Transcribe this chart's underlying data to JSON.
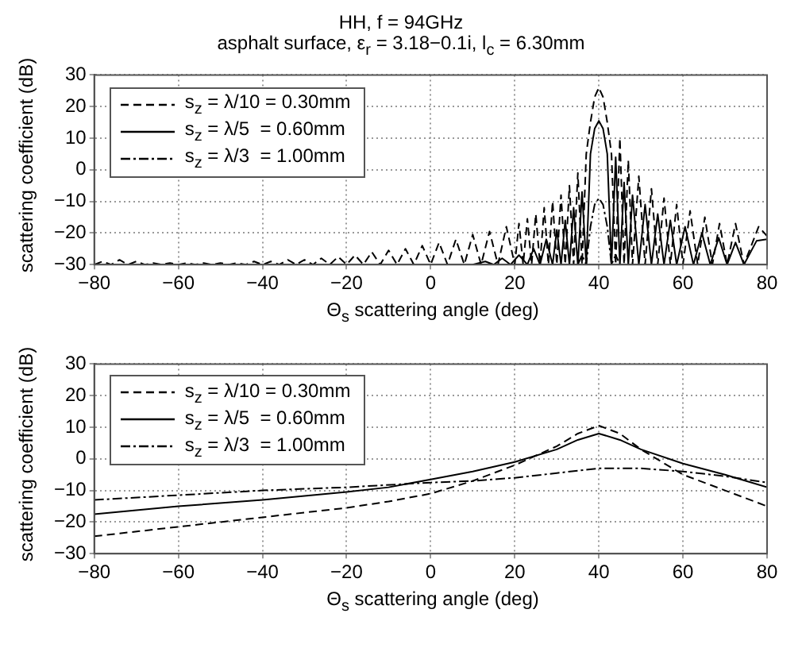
{
  "chart_data": [
    {
      "type": "line",
      "title": "HH, f = 94GHz",
      "subtitle": "asphalt surface, ε$_{r}$ = 3.18−0.1i, l$_{c}$ = 6.30mm",
      "xlabel": "Θ$_{s}$ scattering angle (deg)",
      "ylabel": "scattering coefficient (dB)",
      "xlim": [
        -80,
        80
      ],
      "xticks": [
        -80,
        -60,
        -40,
        -20,
        0,
        20,
        40,
        60,
        80
      ],
      "ylim": [
        -30,
        30
      ],
      "yticks": [
        -30,
        -20,
        -10,
        0,
        10,
        20,
        30
      ],
      "grid": true,
      "legend": "top left",
      "series": [
        {
          "name": "s$_{z}$ = λ/10 = 0.30mm",
          "color": "#000000",
          "line_style": "dashed",
          "x": [
            -80,
            -78,
            -76,
            -74,
            -72,
            -70,
            -68,
            -66,
            -64,
            -62,
            -60,
            -58,
            -56,
            -54,
            -52,
            -50,
            -48,
            -46,
            -44,
            -42,
            -40,
            -38,
            -36,
            -34,
            -32,
            -30,
            -28,
            -26,
            -24,
            -22,
            -20,
            -18,
            -16,
            -14,
            -12,
            -10,
            -8,
            -6,
            -4,
            -2,
            0,
            2,
            4,
            6,
            8,
            10,
            12,
            14,
            16,
            18,
            20,
            21,
            22,
            23,
            24,
            25,
            26,
            27,
            28,
            29,
            30,
            31,
            32,
            33,
            34,
            35,
            36,
            37,
            38,
            39,
            40,
            41,
            42,
            43,
            44,
            45,
            46,
            47,
            48,
            49.5,
            51,
            52.5,
            54,
            55.5,
            57,
            58.5,
            60,
            61.7,
            63.5,
            65.2,
            67,
            68.7,
            70.5,
            72.5,
            74.5,
            78,
            80
          ],
          "values": [
            -30,
            -29,
            -30,
            -28.5,
            -30,
            -29,
            -30,
            -29.5,
            -30,
            -29.5,
            -30,
            -29.5,
            -30,
            -29.5,
            -30,
            -29.5,
            -30,
            -29.5,
            -30,
            -29,
            -30,
            -29,
            -30,
            -28.5,
            -30,
            -28.5,
            -30,
            -28,
            -30,
            -27.5,
            -30,
            -27,
            -30,
            -26,
            -30,
            -25.5,
            -30,
            -25,
            -30,
            -24,
            -30,
            -23,
            -30,
            -22,
            -30,
            -20.5,
            -30,
            -19.5,
            -30,
            -18,
            -30,
            -17,
            -30,
            -15.5,
            -30,
            -14,
            -30,
            -12,
            -30,
            -10,
            -30,
            -8,
            -30,
            -5,
            -30,
            -1,
            -30,
            5,
            15,
            23,
            26,
            23,
            15,
            5,
            -30,
            10,
            -30,
            3,
            -30,
            -2,
            -30,
            -6,
            -30,
            -9,
            -30,
            -11,
            -30,
            -13,
            -30,
            -15,
            -30,
            -17,
            -30,
            -17,
            -30,
            -18,
            -21
          ]
        },
        {
          "name": "s$_{z}$ = λ/5  = 0.60mm",
          "color": "#000000",
          "line_style": "solid",
          "x": [
            10,
            13,
            15,
            17,
            19,
            21,
            23,
            24.5,
            26,
            27.5,
            29,
            30,
            31,
            32,
            33,
            34,
            35,
            36,
            37,
            38,
            39,
            40,
            41,
            42,
            43,
            44,
            45,
            46,
            47,
            48,
            49.5,
            51,
            52.5,
            54,
            55.5,
            57,
            58.5,
            60.5,
            62.5,
            64.5,
            66.5,
            68.5,
            70.5,
            72.5,
            74.5,
            77.5,
            80
          ],
          "values": [
            -30,
            -29,
            -30,
            -28,
            -30,
            -27,
            -30,
            -25,
            -30,
            -22,
            -30,
            -19,
            -30,
            -16,
            -30,
            -12,
            -30,
            -7,
            -30,
            5,
            13,
            15.5,
            13,
            5,
            -30,
            4,
            -30,
            -4,
            -30,
            -8,
            -30,
            -11,
            -30,
            -14,
            -30,
            -16,
            -30,
            -18,
            -30,
            -20,
            -30,
            -21.5,
            -30,
            -23,
            -30,
            -22.5,
            -22
          ]
        },
        {
          "name": "s$_{z}$ = λ/3  = 1.00mm",
          "color": "#000000",
          "line_style": "dotted",
          "x": [
            35,
            36,
            37,
            38,
            39,
            40,
            41,
            42,
            43,
            44,
            45
          ],
          "values": [
            -30,
            -27,
            -30,
            -18,
            -11,
            -9,
            -11,
            -18,
            -30,
            -27,
            -30
          ]
        }
      ]
    },
    {
      "type": "line",
      "xlabel": "Θ$_{s}$ scattering angle (deg)",
      "ylabel": "scattering coefficient (dB)",
      "xlim": [
        -80,
        80
      ],
      "xticks": [
        -80,
        -60,
        -40,
        -20,
        0,
        20,
        40,
        60,
        80
      ],
      "ylim": [
        -30,
        30
      ],
      "yticks": [
        -30,
        -20,
        -10,
        0,
        10,
        20,
        30
      ],
      "grid": true,
      "legend": "top left",
      "series": [
        {
          "name": "s$_{z}$ = λ/10 = 0.30mm",
          "color": "#000000",
          "line_style": "dashed",
          "x": [
            -80,
            -60,
            -40,
            -20,
            -10,
            0,
            10,
            20,
            30,
            35,
            40,
            45,
            50,
            55,
            60,
            70,
            80
          ],
          "values": [
            -24.5,
            -21.5,
            -18.5,
            -15.5,
            -13.5,
            -11,
            -7,
            -2,
            4,
            8,
            10.5,
            8,
            3,
            -1,
            -5,
            -10,
            -15
          ]
        },
        {
          "name": "s$_{z}$ = λ/5  = 0.60mm",
          "color": "#000000",
          "line_style": "solid",
          "x": [
            -80,
            -60,
            -40,
            -20,
            -10,
            0,
            10,
            20,
            30,
            35,
            40,
            45,
            50,
            60,
            70,
            80
          ],
          "values": [
            -17.5,
            -15,
            -13,
            -10.5,
            -9,
            -6.5,
            -4,
            -1,
            3,
            6,
            8,
            6,
            3,
            -1.5,
            -5,
            -9
          ]
        },
        {
          "name": "s$_{z}$ = λ/3  = 1.00mm",
          "color": "#000000",
          "line_style": "dotted",
          "x": [
            -80,
            -60,
            -40,
            -20,
            0,
            10,
            20,
            30,
            40,
            50,
            60,
            70,
            80
          ],
          "values": [
            -13,
            -11.5,
            -10,
            -9,
            -7.5,
            -7,
            -6,
            -4.5,
            -3,
            -3,
            -4,
            -5.5,
            -7.5
          ]
        }
      ]
    }
  ]
}
